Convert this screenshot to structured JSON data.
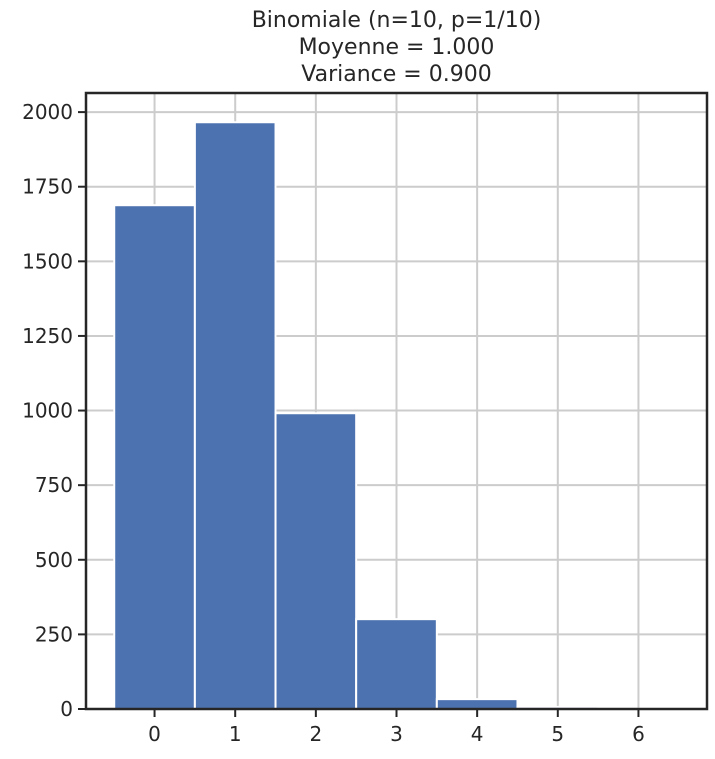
{
  "chart_data": {
    "type": "bar",
    "title": [
      "Binomiale (n=10, p=1/10)",
      "Moyenne =  1.000",
      "Variance =  0.900"
    ],
    "xlabel": "",
    "ylabel": "",
    "categories": [
      "0",
      "1",
      "2",
      "3",
      "4",
      "5",
      "6"
    ],
    "values": [
      1688,
      1966,
      991,
      301,
      33,
      7,
      1
    ],
    "xlim": [
      -0.85,
      6.85
    ],
    "ylim": [
      0,
      2064
    ],
    "xticks": [
      0,
      1,
      2,
      3,
      4,
      5,
      6
    ],
    "yticks": [
      0,
      250,
      500,
      750,
      1000,
      1250,
      1500,
      1750,
      2000
    ],
    "grid": true,
    "legend": null,
    "bar_color": "#4c72b0"
  }
}
